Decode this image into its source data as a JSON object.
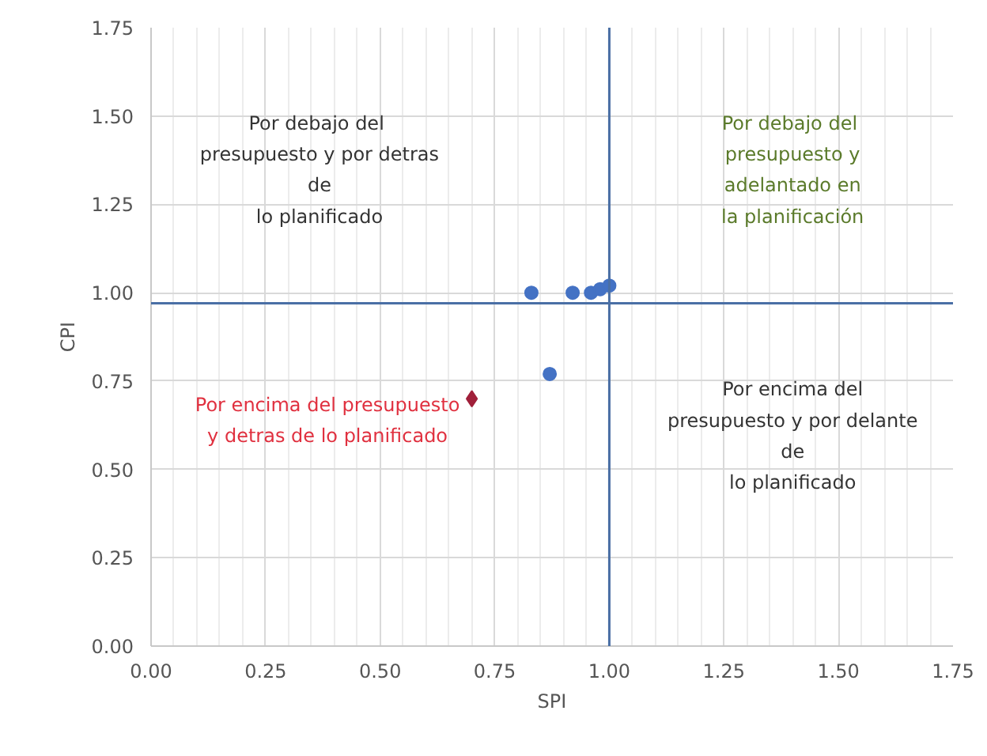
{
  "chart_data": {
    "type": "scatter",
    "xlabel": "SPI",
    "ylabel": "CPI",
    "marker": "circle",
    "grid": true,
    "xlim": [
      0,
      1.75
    ],
    "ylim": [
      0,
      1.75
    ],
    "xticks": [
      {
        "value": 0,
        "label": "0.00"
      },
      {
        "value": 0.25,
        "label": "0.25"
      },
      {
        "value": 0.5,
        "label": "0.50"
      },
      {
        "value": 0.75,
        "label": "0.75"
      },
      {
        "value": 1,
        "label": "1.00"
      },
      {
        "value": 1.25,
        "label": "1.25"
      },
      {
        "value": 1.5,
        "label": "1.50"
      },
      {
        "value": 1.75,
        "label": "1.75"
      }
    ],
    "yticks": [
      {
        "value": 0,
        "label": "0.00"
      },
      {
        "value": 0.25,
        "label": "0.25"
      },
      {
        "value": 0.5,
        "label": "0.50"
      },
      {
        "value": 0.75,
        "label": "0.75"
      },
      {
        "value": 1,
        "label": "1.00"
      },
      {
        "value": 1.25,
        "label": "1.25"
      },
      {
        "value": 1.5,
        "label": "1.50"
      },
      {
        "value": 1.75,
        "label": "1.75"
      }
    ],
    "series": [
      {
        "color": "#4472c4",
        "x": [
          0.83,
          0.92,
          0.96,
          0.98,
          1.0,
          0.87
        ],
        "values": [
          1.0,
          1.0,
          1.0,
          1.01,
          1.02,
          0.77
        ]
      },
      {
        "color": "#a0203a",
        "marker": "diamond",
        "x": [
          0.7
        ],
        "values": [
          0.7
        ]
      }
    ],
    "ref_lines": [
      {
        "axis": "x",
        "value": 1.0,
        "color": "#4a6fa5"
      },
      {
        "axis": "y",
        "value": 0.97,
        "color": "#4a6fa5"
      }
    ],
    "annotations": [
      "Por  debajo del\npresupuesto y por detras\nde\nlo planificado",
      "Por  debajo del\npresupuesto y\nadelantado en\nla planificación",
      "Por encima del presupuesto\ny detras de lo planificado",
      "Por encima del\npresupuesto y por delante\nde\nlo planificado"
    ]
  }
}
